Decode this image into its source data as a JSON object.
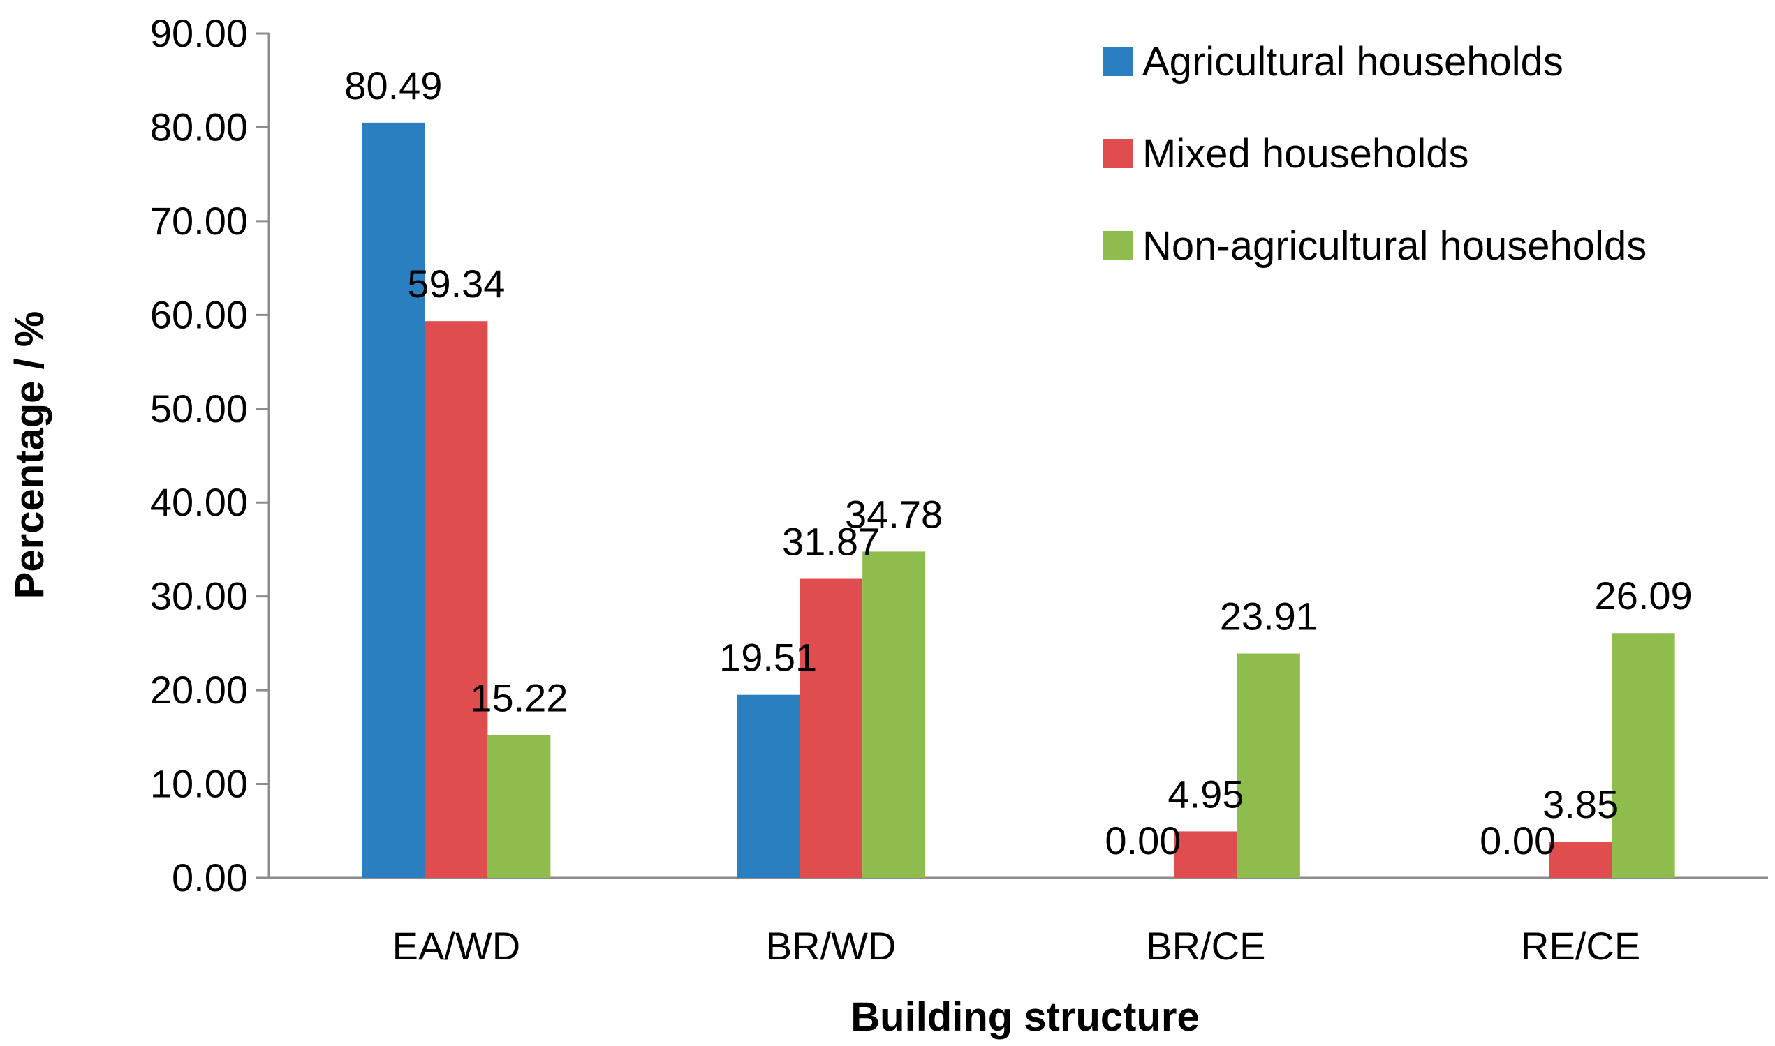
{
  "chart_data": {
    "type": "bar",
    "title": "",
    "xlabel": "Building structure",
    "ylabel": "Percentage / %",
    "ylim": [
      0,
      90
    ],
    "yticks": [
      "0.00",
      "10.00",
      "20.00",
      "30.00",
      "40.00",
      "50.00",
      "60.00",
      "70.00",
      "80.00",
      "90.00"
    ],
    "ytick_values": [
      0,
      10,
      20,
      30,
      40,
      50,
      60,
      70,
      80,
      90
    ],
    "grid": false,
    "legend_position": "top-right",
    "categories": [
      "EA/WD",
      "BR/WD",
      "BR/CE",
      "RE/CE"
    ],
    "series": [
      {
        "name": "Agricultural households",
        "color": "#2a7fc1",
        "values": [
          80.49,
          19.51,
          0.0,
          0.0
        ],
        "labels": [
          "80.49",
          "19.51",
          "0.00",
          "0.00"
        ]
      },
      {
        "name": "Mixed households",
        "color": "#e04d4f",
        "values": [
          59.34,
          31.87,
          4.95,
          3.85
        ],
        "labels": [
          "59.34",
          "31.87",
          "4.95",
          "3.85"
        ]
      },
      {
        "name": "Non-agricultural households",
        "color": "#8ebd4e",
        "values": [
          15.22,
          34.78,
          23.91,
          26.09
        ],
        "labels": [
          "15.22",
          "34.78",
          "23.91",
          "26.09"
        ]
      }
    ]
  }
}
